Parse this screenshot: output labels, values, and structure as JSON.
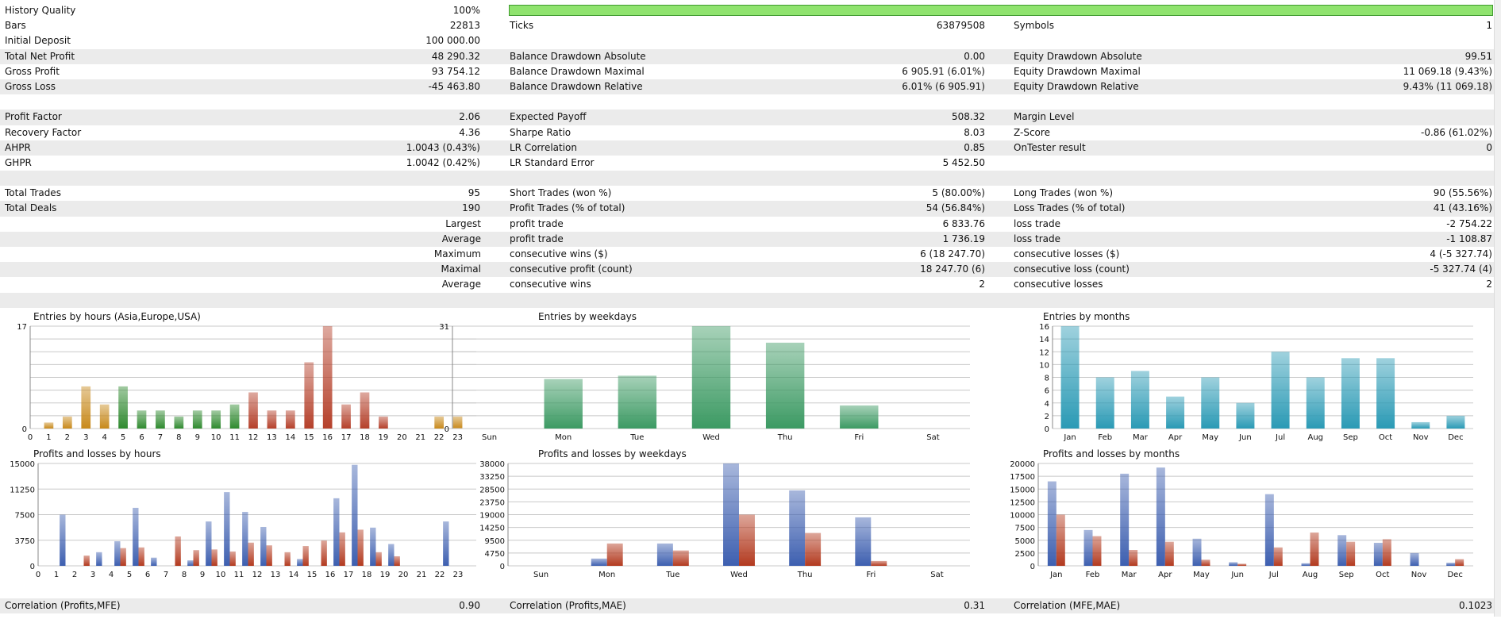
{
  "history_quality": {
    "label": "History Quality",
    "value": "100%",
    "percent": 100
  },
  "stats_rows": [
    {
      "alt": false,
      "cells": [
        "Bars",
        "22813",
        "Ticks",
        "63879508",
        "Symbols",
        "1"
      ]
    },
    {
      "alt": false,
      "cells": [
        "Initial Deposit",
        "100 000.00",
        "",
        "",
        "",
        ""
      ]
    },
    {
      "alt": true,
      "cells": [
        "Total Net Profit",
        "48 290.32",
        "Balance Drawdown Absolute",
        "0.00",
        "Equity Drawdown Absolute",
        "99.51"
      ]
    },
    {
      "alt": false,
      "cells": [
        "Gross Profit",
        "93 754.12",
        "Balance Drawdown Maximal",
        "6 905.91 (6.01%)",
        "Equity Drawdown Maximal",
        "11 069.18 (9.43%)"
      ]
    },
    {
      "alt": true,
      "cells": [
        "Gross Loss",
        "-45 463.80",
        "Balance Drawdown Relative",
        "6.01% (6 905.91)",
        "Equity Drawdown Relative",
        "9.43% (11 069.18)"
      ]
    },
    {
      "alt": false,
      "cells": [
        "",
        "",
        "",
        "",
        "",
        ""
      ]
    },
    {
      "alt": true,
      "cells": [
        "Profit Factor",
        "2.06",
        "Expected Payoff",
        "508.32",
        "Margin Level",
        ""
      ]
    },
    {
      "alt": false,
      "cells": [
        "Recovery Factor",
        "4.36",
        "Sharpe Ratio",
        "8.03",
        "Z-Score",
        "-0.86 (61.02%)"
      ]
    },
    {
      "alt": true,
      "cells": [
        "AHPR",
        "1.0043 (0.43%)",
        "LR Correlation",
        "0.85",
        "OnTester result",
        "0"
      ]
    },
    {
      "alt": false,
      "cells": [
        "GHPR",
        "1.0042 (0.42%)",
        "LR Standard Error",
        "5 452.50",
        "",
        ""
      ]
    },
    {
      "alt": true,
      "cells": [
        "",
        "",
        "",
        "",
        "",
        ""
      ]
    },
    {
      "alt": false,
      "cells": [
        "Total Trades",
        "95",
        "Short Trades (won %)",
        "5 (80.00%)",
        "Long Trades (won %)",
        "90 (55.56%)"
      ]
    },
    {
      "alt": true,
      "cells": [
        "Total Deals",
        "190",
        "Profit Trades (% of total)",
        "54 (56.84%)",
        "Loss Trades (% of total)",
        "41 (43.16%)"
      ]
    },
    {
      "alt": false,
      "right_label": true,
      "cells": [
        "Largest",
        "",
        "profit trade",
        "6 833.76",
        "loss trade",
        "-2 754.22"
      ]
    },
    {
      "alt": true,
      "right_label": true,
      "cells": [
        "Average",
        "",
        "profit trade",
        "1 736.19",
        "loss trade",
        "-1 108.87"
      ]
    },
    {
      "alt": false,
      "right_label": true,
      "cells": [
        "Maximum",
        "",
        "consecutive wins ($)",
        "6 (18 247.70)",
        "consecutive losses ($)",
        "4 (-5 327.74)"
      ]
    },
    {
      "alt": true,
      "right_label": true,
      "cells": [
        "Maximal",
        "",
        "consecutive profit (count)",
        "18 247.70 (6)",
        "consecutive loss (count)",
        "-5 327.74 (4)"
      ]
    },
    {
      "alt": false,
      "right_label": true,
      "cells": [
        "Average",
        "",
        "consecutive wins",
        "2",
        "consecutive losses",
        "2"
      ]
    },
    {
      "alt": true,
      "cells": [
        "",
        "",
        "",
        "",
        "",
        ""
      ]
    }
  ],
  "correlation_row": [
    "Correlation (Profits,MFE)",
    "0.90",
    "Correlation (Profits,MAE)",
    "0.31",
    "Correlation (MFE,MAE)",
    "0.1023"
  ],
  "colors": {
    "bg_alt": "#ebebeb",
    "quality_bar": "#8fe36e",
    "profit": "#3d5fb0",
    "loss": "#b33a1f",
    "asia": "#c8891a",
    "europe": "#2f8a2f",
    "usa": "#b5402a",
    "weekday": "#3c9a63",
    "month": "#2a9ab5"
  },
  "chart_data": [
    {
      "type": "bar",
      "title": "Entries by hours (Asia,Europe,USA)",
      "categories": [
        "0",
        "1",
        "2",
        "3",
        "4",
        "5",
        "6",
        "7",
        "8",
        "9",
        "10",
        "11",
        "12",
        "13",
        "14",
        "15",
        "16",
        "17",
        "18",
        "19",
        "20",
        "21",
        "22",
        "23"
      ],
      "values": [
        0,
        1,
        2,
        7,
        4,
        7,
        3,
        3,
        2,
        3,
        3,
        4,
        6,
        3,
        3,
        11,
        17,
        4,
        6,
        2,
        0,
        0,
        2,
        2
      ],
      "groups": [
        "asia",
        "asia",
        "asia",
        "asia",
        "asia",
        "europe",
        "europe",
        "europe",
        "europe",
        "europe",
        "europe",
        "europe",
        "usa",
        "usa",
        "usa",
        "usa",
        "usa",
        "usa",
        "usa",
        "usa",
        "usa",
        "usa",
        "asia",
        "asia"
      ],
      "yticks": [
        "17",
        "0"
      ],
      "ylim": [
        0,
        17
      ]
    },
    {
      "type": "bar",
      "title": "Entries by weekdays",
      "categories": [
        "Sun",
        "Mon",
        "Tue",
        "Wed",
        "Thu",
        "Fri",
        "Sat"
      ],
      "values": [
        0,
        15,
        16,
        31,
        26,
        7,
        0
      ],
      "yticks": [
        "31",
        "0"
      ],
      "ylim": [
        0,
        31
      ]
    },
    {
      "type": "bar",
      "title": "Entries by months",
      "categories": [
        "Jan",
        "Feb",
        "Mar",
        "Apr",
        "May",
        "Jun",
        "Jul",
        "Aug",
        "Sep",
        "Oct",
        "Nov",
        "Dec"
      ],
      "values": [
        16,
        8,
        9,
        5,
        8,
        4,
        12,
        8,
        11,
        11,
        1,
        2
      ],
      "yticks": [
        "16",
        "14",
        "12",
        "10",
        "8",
        "6",
        "4",
        "2",
        "0"
      ],
      "ylim": [
        0,
        16
      ]
    },
    {
      "type": "bar",
      "title": "Profits and losses by hours",
      "categories": [
        "0",
        "1",
        "2",
        "3",
        "4",
        "5",
        "6",
        "7",
        "8",
        "9",
        "10",
        "11",
        "12",
        "13",
        "14",
        "15",
        "16",
        "17",
        "18",
        "19",
        "20",
        "21",
        "22",
        "23"
      ],
      "series": [
        {
          "name": "Profits",
          "values": [
            0,
            7500,
            0,
            2000,
            3600,
            8500,
            1200,
            0,
            800,
            6500,
            10800,
            7900,
            5700,
            0,
            1000,
            0,
            9900,
            14800,
            5600,
            3200,
            0,
            0,
            6500,
            0
          ]
        },
        {
          "name": "Losses",
          "values": [
            0,
            0,
            1500,
            0,
            2600,
            2700,
            0,
            4300,
            2300,
            2400,
            2100,
            3400,
            3000,
            2000,
            2900,
            3700,
            4900,
            5300,
            2000,
            1400,
            0,
            0,
            0,
            0
          ]
        }
      ],
      "yticks": [
        "15000",
        "11250",
        "7500",
        "3750",
        "0"
      ],
      "ylim": [
        0,
        15000
      ]
    },
    {
      "type": "bar",
      "title": "Profits and losses by weekdays",
      "categories": [
        "Sun",
        "Mon",
        "Tue",
        "Wed",
        "Thu",
        "Fri",
        "Sat"
      ],
      "series": [
        {
          "name": "Profits",
          "values": [
            0,
            2700,
            8300,
            38000,
            28000,
            18000,
            0
          ]
        },
        {
          "name": "Losses",
          "values": [
            0,
            8300,
            5700,
            19000,
            12200,
            1800,
            0
          ]
        }
      ],
      "yticks": [
        "38000",
        "33250",
        "28500",
        "23750",
        "19000",
        "14250",
        "9500",
        "4750",
        "0"
      ],
      "ylim": [
        0,
        38000
      ]
    },
    {
      "type": "bar",
      "title": "Profits and losses by months",
      "categories": [
        "Jan",
        "Feb",
        "Mar",
        "Apr",
        "May",
        "Jun",
        "Jul",
        "Aug",
        "Sep",
        "Oct",
        "Nov",
        "Dec"
      ],
      "series": [
        {
          "name": "Profits",
          "values": [
            16500,
            7000,
            18000,
            19200,
            5300,
            700,
            14000,
            500,
            6000,
            4500,
            2500,
            600
          ]
        },
        {
          "name": "Losses",
          "values": [
            10000,
            5800,
            3100,
            4700,
            1200,
            400,
            3600,
            6500,
            4700,
            5200,
            0,
            1300
          ]
        }
      ],
      "yticks": [
        "20000",
        "17500",
        "15000",
        "12500",
        "10000",
        "7500",
        "5000",
        "2500",
        "0"
      ],
      "ylim": [
        0,
        20000
      ]
    }
  ]
}
